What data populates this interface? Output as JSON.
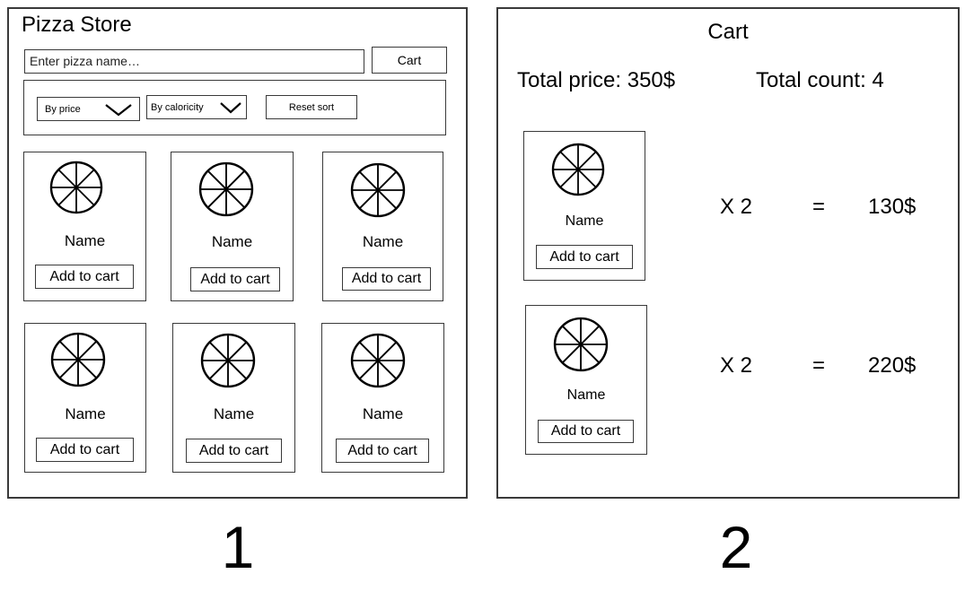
{
  "left": {
    "title": "Pizza Store",
    "search": {
      "placeholder": "Enter pizza name…"
    },
    "cart_button": "Cart",
    "sort": {
      "by_price": "By price",
      "by_calories": "By caloricity",
      "reset": "Reset sort"
    },
    "cards": [
      {
        "name": "Name",
        "button": "Add to cart"
      },
      {
        "name": "Name",
        "button": "Add to cart"
      },
      {
        "name": "Name",
        "button": "Add to cart"
      },
      {
        "name": "Name",
        "button": "Add to cart"
      },
      {
        "name": "Name",
        "button": "Add to cart"
      },
      {
        "name": "Name",
        "button": "Add to cart"
      }
    ],
    "label": "1"
  },
  "right": {
    "title": "Cart",
    "total_price": "Total price: 350$",
    "total_count": "Total count: 4",
    "items": [
      {
        "name": "Name",
        "button": "Add to cart",
        "qty": "X 2",
        "eq": "=",
        "price": "130$"
      },
      {
        "name": "Name",
        "button": "Add to cart",
        "qty": "X 2",
        "eq": "=",
        "price": "220$"
      }
    ],
    "label": "2"
  }
}
